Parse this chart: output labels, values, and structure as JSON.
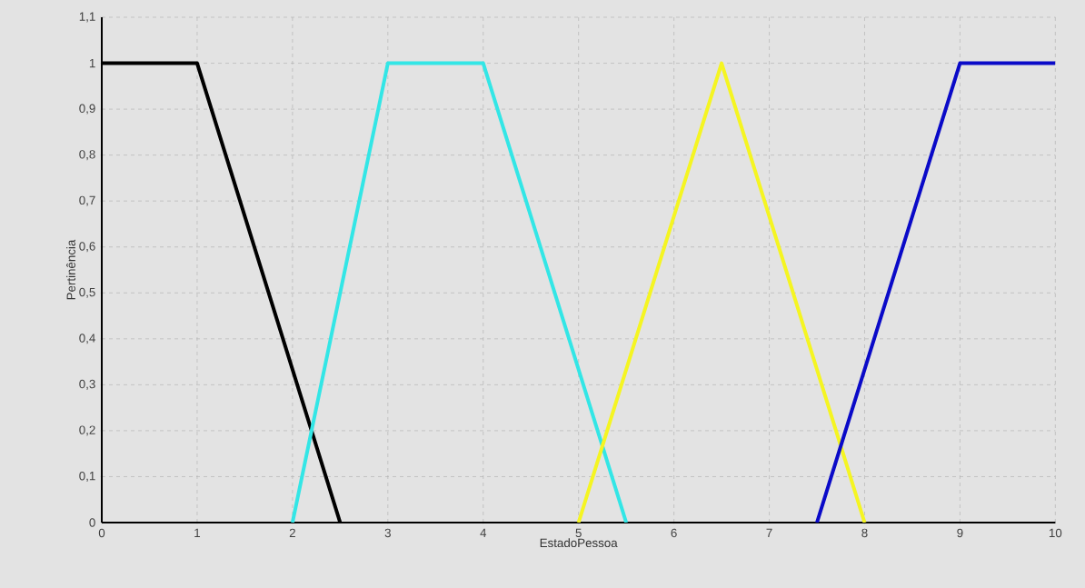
{
  "chart_data": {
    "type": "line",
    "xlabel": "EstadoPessoa",
    "ylabel": "Pertinência",
    "series": [
      {
        "color": "#000000",
        "x": [
          0,
          1,
          2.5
        ],
        "values": [
          1,
          1,
          0
        ]
      },
      {
        "color": "#33e6e6",
        "x": [
          2,
          3,
          4,
          5.5
        ],
        "values": [
          0,
          1,
          1,
          0
        ]
      },
      {
        "color": "#f5f522",
        "x": [
          5,
          6.5,
          8
        ],
        "values": [
          0,
          1,
          0
        ]
      },
      {
        "color": "#0a0ac8",
        "x": [
          7.5,
          9,
          10
        ],
        "values": [
          0,
          1,
          1
        ]
      }
    ],
    "xlim": [
      0,
      10
    ],
    "xticks": [
      0,
      1,
      2,
      3,
      4,
      5,
      6,
      7,
      8,
      9,
      10
    ],
    "ylim": [
      0,
      1.1
    ],
    "yticks": [
      0,
      {
        "value": 0.1,
        "label": "0,1"
      },
      {
        "value": 0.2,
        "label": "0,2"
      },
      {
        "value": 0.3,
        "label": "0,3"
      },
      {
        "value": 0.4,
        "label": "0,4"
      },
      {
        "value": 0.5,
        "label": "0,5"
      },
      {
        "value": 0.6,
        "label": "0,6"
      },
      {
        "value": 0.7,
        "label": "0,7"
      },
      {
        "value": 0.8,
        "label": "0,8"
      },
      {
        "value": 0.9,
        "label": "0,9"
      },
      1,
      {
        "value": 1.1,
        "label": "1,1"
      }
    ],
    "grid": true,
    "line_style": "solid",
    "marker": "none"
  }
}
